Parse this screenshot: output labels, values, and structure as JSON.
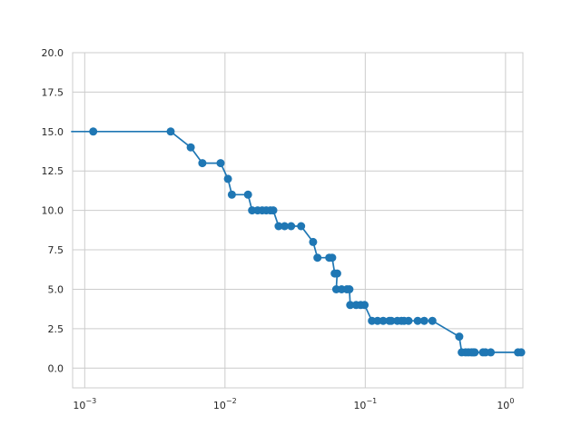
{
  "colors": {
    "line": "#1f77b4",
    "grid": "#cccccc",
    "frame": "#cccccc",
    "text": "#262626",
    "background": "#ffffff"
  },
  "chart_data": {
    "type": "line",
    "title": "",
    "xlabel": "",
    "ylabel": "",
    "xscale": "log",
    "xlim": [
      0.00082,
      1.33
    ],
    "ylim": [
      -1.25,
      20.0
    ],
    "grid": true,
    "legend": "none",
    "markers": "filled-circle",
    "y_ticks": [
      0.0,
      2.5,
      5.0,
      7.5,
      10.0,
      12.5,
      15.0,
      17.5,
      20.0
    ],
    "y_tick_labels": [
      "0.0",
      "2.5",
      "5.0",
      "7.5",
      "10.0",
      "12.5",
      "15.0",
      "17.5",
      "20.0"
    ],
    "x_ticks": [
      0.001,
      0.01,
      0.1,
      1
    ],
    "x_tick_labels": [
      {
        "base": "10",
        "exp": "−3"
      },
      {
        "base": "10",
        "exp": "−2"
      },
      {
        "base": "10",
        "exp": "−1"
      },
      {
        "base": "10",
        "exp": "0"
      }
    ],
    "line_start": {
      "x": 0.0008,
      "y": 15
    },
    "series": [
      {
        "x": [
          0.00115,
          0.0041,
          0.0057,
          0.0069,
          0.0093,
          0.0105,
          0.0112,
          0.0146,
          0.0156,
          0.0171,
          0.0184,
          0.0197,
          0.0211,
          0.0221,
          0.0241,
          0.0266,
          0.0296,
          0.0349,
          0.0425,
          0.0456,
          0.0554,
          0.0581,
          0.0606,
          0.0631,
          0.0621,
          0.0678,
          0.0741,
          0.0771,
          0.0781,
          0.0861,
          0.0927,
          0.0989,
          0.1115,
          0.1224,
          0.1342,
          0.1486,
          0.1533,
          0.1694,
          0.1811,
          0.1892,
          0.2035,
          0.2365,
          0.2631,
          0.3011,
          0.4677,
          0.4873,
          0.5191,
          0.5441,
          0.5711,
          0.5881,
          0.6031,
          0.6902,
          0.7201,
          0.7843,
          1.2264,
          1.2921
        ],
        "y": [
          15,
          15,
          14,
          13,
          13,
          12,
          11,
          11,
          10,
          10,
          10,
          10,
          10,
          10,
          9,
          9,
          9,
          9,
          8,
          7,
          7,
          7,
          6,
          6,
          5,
          5,
          5,
          5,
          4,
          4,
          4,
          4,
          3,
          3,
          3,
          3,
          3,
          3,
          3,
          3,
          3,
          3,
          3,
          3,
          2,
          1,
          1,
          1,
          1,
          1,
          1,
          1,
          1,
          1,
          1,
          1
        ]
      }
    ]
  }
}
